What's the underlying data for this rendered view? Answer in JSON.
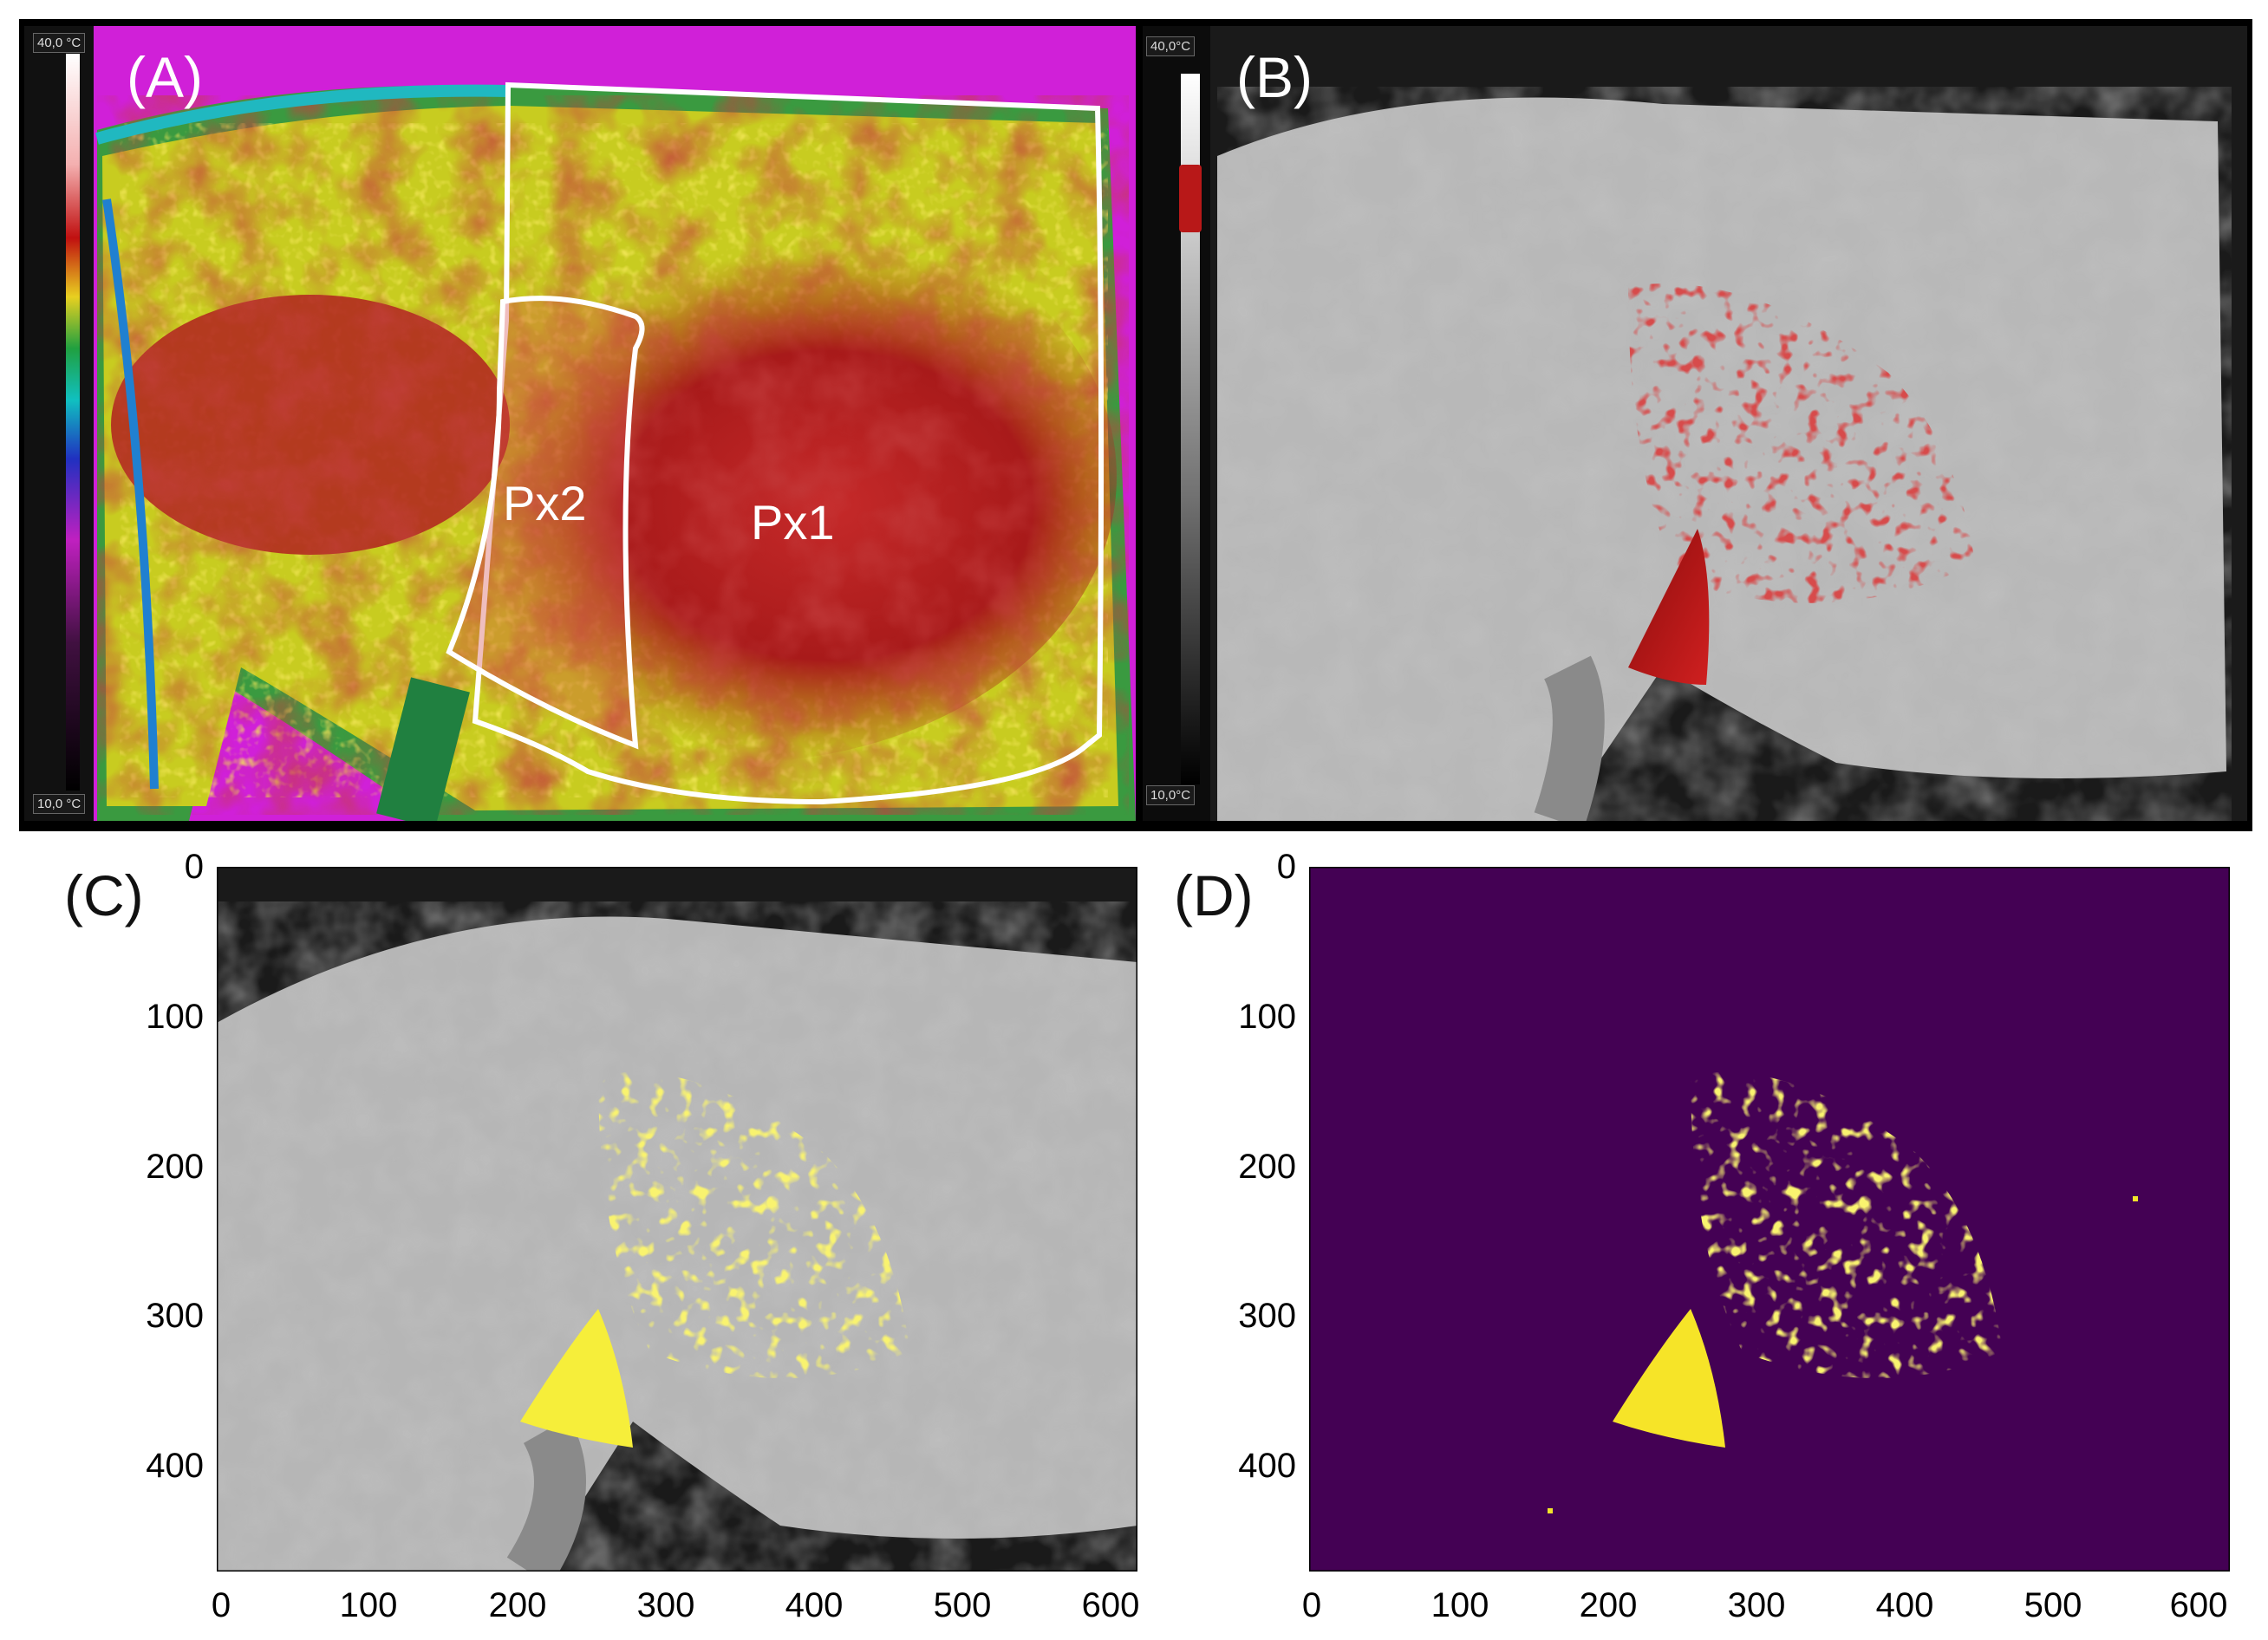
{
  "panels": {
    "a": {
      "label": "(A)",
      "scale_max": "40,0 °C",
      "scale_min": "10,0 °C",
      "regions": [
        "Px1",
        "Px2"
      ]
    },
    "b": {
      "label": "(B)",
      "scale_max": "40,0°C",
      "scale_min": "10,0°C"
    },
    "c": {
      "label": "(C)",
      "y_ticks": [
        "0",
        "100",
        "200",
        "300",
        "400"
      ],
      "x_ticks": [
        "0",
        "100",
        "200",
        "300",
        "400",
        "500",
        "600"
      ]
    },
    "d": {
      "label": "(D)",
      "y_ticks": [
        "0",
        "100",
        "200",
        "300",
        "400"
      ],
      "x_ticks": [
        "0",
        "100",
        "200",
        "300",
        "400",
        "500",
        "600"
      ]
    }
  },
  "colors": {
    "mask_yellow": "#f2e42a",
    "mask_purple": "#440154",
    "hot_red": "#b81818"
  }
}
